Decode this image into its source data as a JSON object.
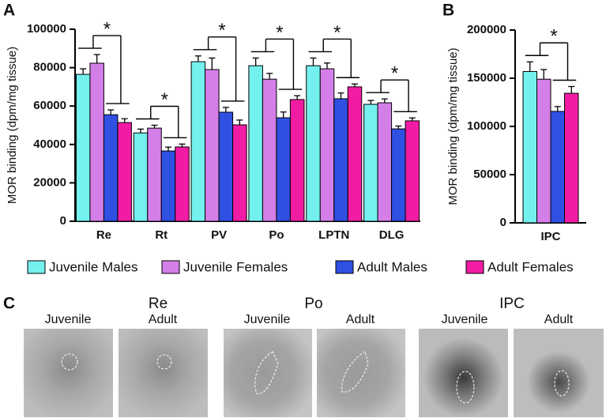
{
  "chart_data": [
    {
      "type": "bar",
      "panel_label": "A",
      "y_label": "MOR binding (dpm/mg tissue)",
      "categories": [
        "Re",
        "Rt",
        "PV",
        "Po",
        "LPTN",
        "DLG"
      ],
      "series": [
        {
          "name": "Juvenile Males",
          "color": "#74f0ee",
          "values": [
            76500,
            46000,
            83100,
            81000,
            81000,
            60900
          ],
          "errors": [
            2900,
            2000,
            3000,
            4000,
            4000,
            2000
          ]
        },
        {
          "name": "Juvenile Females",
          "color": "#d47fe8",
          "values": [
            82300,
            48500,
            79000,
            74000,
            79400,
            61700
          ],
          "errors": [
            4500,
            1500,
            6000,
            3000,
            3000,
            2000
          ]
        },
        {
          "name": "Adult Males",
          "color": "#3050e2",
          "values": [
            55500,
            36600,
            56800,
            53900,
            63800,
            48100
          ],
          "errors": [
            2500,
            2000,
            2500,
            3000,
            3000,
            1500
          ]
        },
        {
          "name": "Adult Females",
          "color": "#f21ca4",
          "values": [
            51400,
            38700,
            50200,
            63400,
            70000,
            52300
          ],
          "errors": [
            2000,
            1500,
            2500,
            2000,
            1500,
            1500
          ]
        }
      ],
      "annotations": [
        "*",
        "*",
        "*",
        "*",
        "*",
        "*"
      ],
      "ylim": [
        0,
        100000
      ],
      "yticks": [
        0,
        20000,
        40000,
        60000,
        80000,
        100000
      ]
    },
    {
      "type": "bar",
      "panel_label": "B",
      "y_label": "MOR binding (dpm/mg tissue)",
      "categories": [
        "IPC"
      ],
      "series": [
        {
          "color": "#74f0ee",
          "values": [
            157000
          ],
          "errors": [
            10000
          ]
        },
        {
          "color": "#d47fe8",
          "values": [
            149000
          ],
          "errors": [
            10000
          ]
        },
        {
          "color": "#3050e2",
          "values": [
            115600
          ],
          "errors": [
            5000
          ]
        },
        {
          "color": "#f21ca4",
          "values": [
            134400
          ],
          "errors": [
            7000
          ]
        }
      ],
      "annotations": [
        "*"
      ],
      "ylim": [
        0,
        200000
      ],
      "yticks": [
        0,
        50000,
        100000,
        150000,
        200000
      ]
    }
  ],
  "panel_c": {
    "label": "C",
    "groups": [
      {
        "title": "Re",
        "images": [
          "Juvenile",
          "Adult"
        ]
      },
      {
        "title": "Po",
        "images": [
          "Juvenile",
          "Adult"
        ]
      },
      {
        "title": "IPC",
        "images": [
          "Juvenile",
          "Adult"
        ]
      }
    ]
  }
}
